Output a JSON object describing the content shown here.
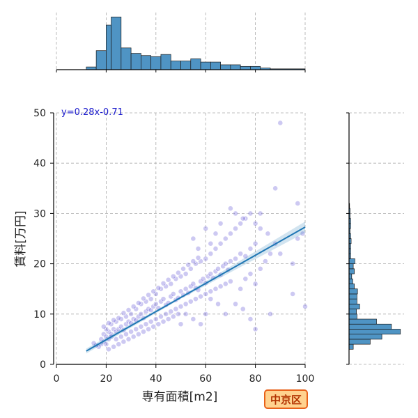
{
  "chart_data": {
    "type": "scatter",
    "xlabel": "専有面積[m2]",
    "ylabel": "賃料[万円]",
    "xlim": [
      0,
      100
    ],
    "ylim": [
      0,
      50
    ],
    "x_ticks": [
      "0",
      "20",
      "40",
      "60",
      "80",
      "100"
    ],
    "y_ticks": [
      "0",
      "10",
      "20",
      "30",
      "40",
      "50"
    ],
    "grid": true,
    "annotation": "y=0.28x-0.71",
    "regression": {
      "slope": 0.28,
      "intercept": -0.71,
      "x_range": [
        12,
        100
      ]
    },
    "point_color": "#4a3ccf",
    "line_color": "#1f77b4",
    "hist_color": "#4f94c4",
    "points": [
      [
        18,
        5
      ],
      [
        19,
        6
      ],
      [
        20,
        5.5
      ],
      [
        21,
        6.5
      ],
      [
        22,
        6
      ],
      [
        23,
        7
      ],
      [
        19,
        4.5
      ],
      [
        20,
        4
      ],
      [
        21,
        5
      ],
      [
        22,
        5.5
      ],
      [
        18,
        4
      ],
      [
        17,
        3.5
      ],
      [
        16,
        3.8
      ],
      [
        15,
        4.2
      ],
      [
        24,
        6.5
      ],
      [
        25,
        7
      ],
      [
        26,
        7.5
      ],
      [
        27,
        6.8
      ],
      [
        28,
        8
      ],
      [
        29,
        8.5
      ],
      [
        30,
        8.2
      ],
      [
        31,
        9
      ],
      [
        32,
        8.8
      ],
      [
        33,
        9.5
      ],
      [
        34,
        10
      ],
      [
        35,
        9.2
      ],
      [
        36,
        10.5
      ],
      [
        37,
        11
      ],
      [
        38,
        10.8
      ],
      [
        39,
        11.5
      ],
      [
        40,
        12
      ],
      [
        41,
        11.2
      ],
      [
        42,
        12.5
      ],
      [
        43,
        13
      ],
      [
        44,
        11.8
      ],
      [
        45,
        12.2
      ],
      [
        46,
        13.5
      ],
      [
        47,
        14
      ],
      [
        48,
        12.8
      ],
      [
        49,
        13.2
      ],
      [
        50,
        14.5
      ],
      [
        51,
        13.8
      ],
      [
        52,
        15
      ],
      [
        53,
        14.2
      ],
      [
        54,
        15.5
      ],
      [
        55,
        16
      ],
      [
        56,
        15.2
      ],
      [
        57,
        14.8
      ],
      [
        58,
        16.5
      ],
      [
        59,
        17
      ],
      [
        60,
        16.2
      ],
      [
        61,
        17.5
      ],
      [
        62,
        18
      ],
      [
        63,
        17.2
      ],
      [
        64,
        18.5
      ],
      [
        65,
        19
      ],
      [
        66,
        17.8
      ],
      [
        67,
        19.5
      ],
      [
        68,
        20
      ],
      [
        69,
        18.8
      ],
      [
        70,
        20.5
      ],
      [
        72,
        21
      ],
      [
        74,
        22
      ],
      [
        76,
        21.5
      ],
      [
        78,
        23
      ],
      [
        80,
        24
      ],
      [
        20,
        7
      ],
      [
        22,
        8
      ],
      [
        24,
        8.5
      ],
      [
        26,
        9
      ],
      [
        28,
        9.5
      ],
      [
        30,
        10
      ],
      [
        32,
        11
      ],
      [
        34,
        12
      ],
      [
        36,
        12.5
      ],
      [
        38,
        13
      ],
      [
        40,
        14
      ],
      [
        42,
        15
      ],
      [
        44,
        15.5
      ],
      [
        46,
        16
      ],
      [
        48,
        17
      ],
      [
        50,
        17.5
      ],
      [
        52,
        18
      ],
      [
        54,
        19
      ],
      [
        56,
        20
      ],
      [
        58,
        20.5
      ],
      [
        60,
        21
      ],
      [
        62,
        22
      ],
      [
        64,
        23
      ],
      [
        66,
        24
      ],
      [
        68,
        25
      ],
      [
        70,
        26
      ],
      [
        72,
        27
      ],
      [
        74,
        28
      ],
      [
        76,
        29
      ],
      [
        78,
        30
      ],
      [
        24,
        5
      ],
      [
        26,
        5.5
      ],
      [
        28,
        6
      ],
      [
        30,
        6.5
      ],
      [
        32,
        7
      ],
      [
        34,
        7.5
      ],
      [
        36,
        8
      ],
      [
        38,
        8.5
      ],
      [
        40,
        9
      ],
      [
        42,
        9.5
      ],
      [
        44,
        10
      ],
      [
        46,
        10.5
      ],
      [
        48,
        11
      ],
      [
        50,
        11.5
      ],
      [
        52,
        12
      ],
      [
        54,
        12.5
      ],
      [
        56,
        13
      ],
      [
        58,
        13.5
      ],
      [
        60,
        14
      ],
      [
        62,
        14.5
      ],
      [
        64,
        15
      ],
      [
        66,
        15.5
      ],
      [
        68,
        16
      ],
      [
        70,
        16.5
      ],
      [
        21,
        3
      ],
      [
        23,
        3.5
      ],
      [
        25,
        4
      ],
      [
        27,
        4.5
      ],
      [
        29,
        5
      ],
      [
        31,
        5.5
      ],
      [
        33,
        6
      ],
      [
        35,
        6.5
      ],
      [
        37,
        7
      ],
      [
        39,
        7.5
      ],
      [
        41,
        8
      ],
      [
        43,
        8.5
      ],
      [
        45,
        9
      ],
      [
        47,
        9.5
      ],
      [
        49,
        10
      ],
      [
        19,
        7.5
      ],
      [
        21,
        8.2
      ],
      [
        23,
        8.8
      ],
      [
        25,
        9.2
      ],
      [
        27,
        10.2
      ],
      [
        29,
        10.8
      ],
      [
        31,
        11.5
      ],
      [
        33,
        12.2
      ],
      [
        35,
        13.1
      ],
      [
        37,
        13.8
      ],
      [
        39,
        14.5
      ],
      [
        41,
        15.2
      ],
      [
        43,
        16.1
      ],
      [
        45,
        16.8
      ],
      [
        47,
        17.5
      ],
      [
        49,
        18.2
      ],
      [
        51,
        19
      ],
      [
        53,
        19.8
      ],
      [
        55,
        20.5
      ],
      [
        57,
        21.2
      ],
      [
        70,
        31
      ],
      [
        72,
        30
      ],
      [
        75,
        29
      ],
      [
        80,
        28
      ],
      [
        82,
        27
      ],
      [
        85,
        26
      ],
      [
        88,
        24
      ],
      [
        90,
        22
      ],
      [
        95,
        20
      ],
      [
        97,
        25
      ],
      [
        99,
        26
      ],
      [
        100,
        11.5
      ],
      [
        95,
        14
      ],
      [
        88,
        35
      ],
      [
        90,
        48
      ],
      [
        97,
        32
      ],
      [
        86,
        10
      ],
      [
        80,
        7
      ],
      [
        78,
        9
      ],
      [
        75,
        11
      ],
      [
        72,
        12
      ],
      [
        68,
        10
      ],
      [
        65,
        12
      ],
      [
        62,
        13
      ],
      [
        60,
        10
      ],
      [
        58,
        8
      ],
      [
        55,
        9
      ],
      [
        52,
        10
      ],
      [
        50,
        8
      ],
      [
        80,
        16
      ],
      [
        82,
        19
      ],
      [
        84,
        20.5
      ],
      [
        86,
        22
      ],
      [
        78,
        18
      ],
      [
        76,
        17
      ],
      [
        74,
        15
      ],
      [
        66,
        28
      ],
      [
        64,
        26
      ],
      [
        62,
        24
      ],
      [
        60,
        27
      ],
      [
        55,
        25
      ],
      [
        57,
        23
      ],
      [
        82,
        30
      ]
    ],
    "x_hist": {
      "bins": [
        [
          12,
          16,
          0.05
        ],
        [
          16,
          20,
          0.35
        ],
        [
          20,
          22,
          0.82
        ],
        [
          22,
          26,
          0.97
        ],
        [
          26,
          30,
          0.4
        ],
        [
          30,
          34,
          0.3
        ],
        [
          34,
          38,
          0.26
        ],
        [
          38,
          42,
          0.24
        ],
        [
          42,
          46,
          0.28
        ],
        [
          46,
          50,
          0.16
        ],
        [
          50,
          54,
          0.16
        ],
        [
          54,
          58,
          0.2
        ],
        [
          58,
          62,
          0.14
        ],
        [
          62,
          66,
          0.14
        ],
        [
          66,
          70,
          0.09
        ],
        [
          70,
          74,
          0.09
        ],
        [
          74,
          78,
          0.06
        ],
        [
          78,
          82,
          0.06
        ],
        [
          82,
          86,
          0.03
        ],
        [
          86,
          100,
          0.015
        ]
      ]
    },
    "y_hist": {
      "bins": [
        [
          3,
          4,
          0.08
        ],
        [
          4,
          5,
          0.4
        ],
        [
          5,
          6,
          0.62
        ],
        [
          6,
          7,
          0.97
        ],
        [
          7,
          8,
          0.8
        ],
        [
          8,
          9,
          0.52
        ],
        [
          9,
          10,
          0.15
        ],
        [
          10,
          11,
          0.14
        ],
        [
          11,
          12,
          0.2
        ],
        [
          12,
          13,
          0.15
        ],
        [
          13,
          14,
          0.15
        ],
        [
          14,
          15,
          0.16
        ],
        [
          15,
          16,
          0.1
        ],
        [
          16,
          17,
          0.07
        ],
        [
          17,
          18,
          0.05
        ],
        [
          18,
          19,
          0.1
        ],
        [
          19,
          20,
          0.08
        ],
        [
          20,
          21,
          0.11
        ],
        [
          21,
          22,
          0.03
        ],
        [
          22,
          23,
          0.03
        ],
        [
          23,
          24,
          0.03
        ],
        [
          24,
          25,
          0.04
        ],
        [
          25,
          26,
          0.03
        ],
        [
          26,
          27,
          0.02
        ],
        [
          27,
          28,
          0.03
        ],
        [
          28,
          29,
          0.03
        ],
        [
          29,
          30,
          0.02
        ],
        [
          30,
          31,
          0.02
        ],
        [
          31,
          32,
          0.01
        ]
      ]
    }
  },
  "region_label": "中京区"
}
